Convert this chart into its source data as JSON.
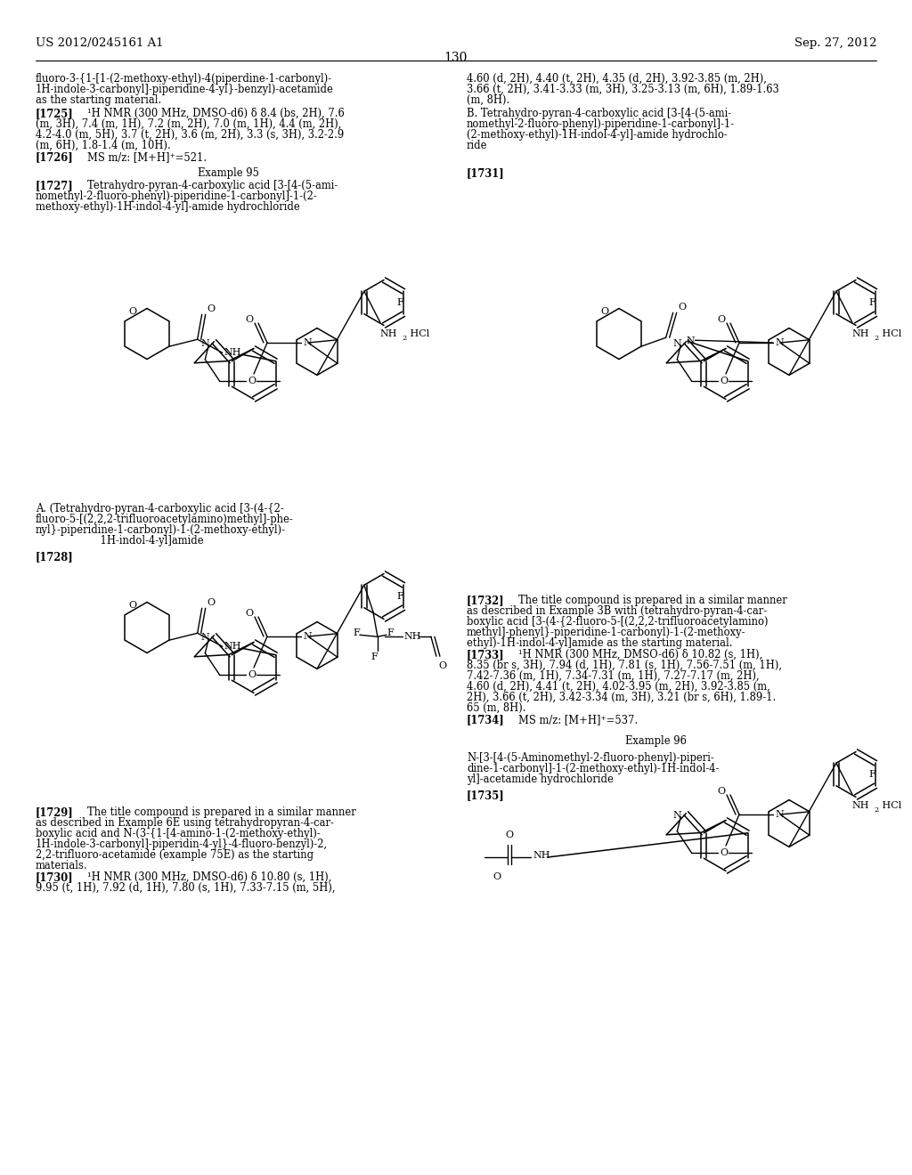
{
  "page_number": "130",
  "patent_number": "US 2012/0245161 A1",
  "patent_date": "Sep. 27, 2012",
  "bg": "#ffffff"
}
